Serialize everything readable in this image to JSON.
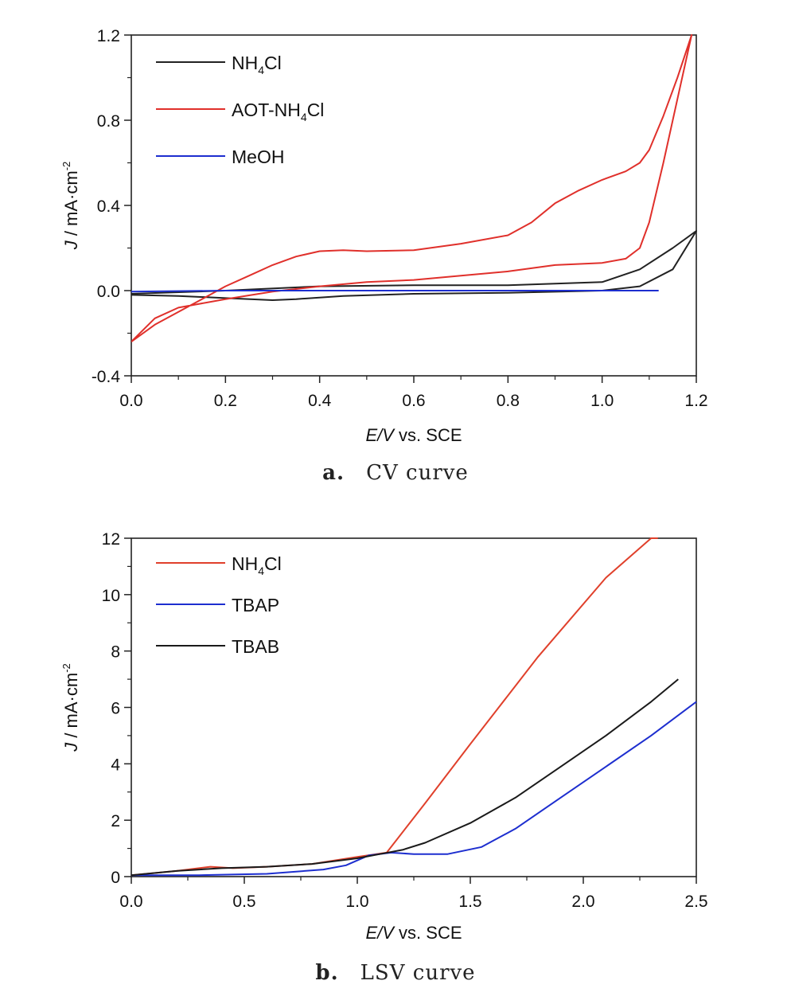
{
  "chart_data": [
    {
      "type": "line",
      "panel_letter": "a.",
      "caption": "CV curve",
      "xlabel_italic": "E/V",
      "xlabel_rest": " vs. SCE",
      "ylabel_italic": "J",
      "ylabel_rest": " / mA·cm",
      "ylabel_sup": "-2",
      "xlim": [
        0.0,
        1.2
      ],
      "ylim": [
        -0.4,
        1.2
      ],
      "xticks": [
        "0.0",
        "0.2",
        "0.4",
        "0.6",
        "0.8",
        "1.0",
        "1.2"
      ],
      "yticks": [
        "-0.4",
        "0.0",
        "0.4",
        "0.8",
        "1.2"
      ],
      "legend_position": "top-left",
      "series": [
        {
          "name_main": "NH",
          "name_sub": "4",
          "name_tail": "Cl",
          "color": "#222222",
          "x": [
            0.0,
            0.1,
            0.2,
            0.3,
            0.35,
            0.45,
            0.6,
            0.8,
            1.0,
            1.08,
            1.15,
            1.2,
            1.15,
            1.08,
            1.0,
            0.8,
            0.6,
            0.4,
            0.2,
            0.0
          ],
          "y": [
            -0.02,
            -0.025,
            -0.035,
            -0.045,
            -0.04,
            -0.025,
            -0.015,
            -0.01,
            0.0,
            0.02,
            0.1,
            0.28,
            0.2,
            0.1,
            0.04,
            0.025,
            0.025,
            0.02,
            0.0,
            -0.015
          ]
        },
        {
          "name_main": "AOT-NH",
          "name_sub": "4",
          "name_tail": "Cl",
          "color": "#e0302b",
          "x": [
            0.0,
            0.05,
            0.1,
            0.15,
            0.2,
            0.25,
            0.3,
            0.35,
            0.4,
            0.45,
            0.5,
            0.6,
            0.7,
            0.8,
            0.85,
            0.9,
            0.95,
            1.0,
            1.05,
            1.08,
            1.1,
            1.13,
            1.16,
            1.19,
            1.19,
            1.16,
            1.13,
            1.1,
            1.08,
            1.05,
            1.0,
            0.9,
            0.8,
            0.7,
            0.6,
            0.5,
            0.4,
            0.3,
            0.2,
            0.1,
            0.05,
            0.0
          ],
          "y": [
            -0.24,
            -0.16,
            -0.1,
            -0.04,
            0.02,
            0.07,
            0.12,
            0.16,
            0.185,
            0.19,
            0.185,
            0.19,
            0.22,
            0.26,
            0.32,
            0.41,
            0.47,
            0.52,
            0.56,
            0.6,
            0.66,
            0.82,
            1.0,
            1.2,
            1.2,
            0.9,
            0.6,
            0.32,
            0.2,
            0.15,
            0.13,
            0.12,
            0.09,
            0.07,
            0.05,
            0.04,
            0.02,
            -0.005,
            -0.04,
            -0.08,
            -0.13,
            -0.24
          ]
        },
        {
          "name_main": "MeOH",
          "name_sub": "",
          "name_tail": "",
          "color": "#1d2ecf",
          "x": [
            0.0,
            0.2,
            0.4,
            0.6,
            0.8,
            1.0,
            1.12
          ],
          "y": [
            -0.005,
            0.0,
            0.0,
            0.0,
            0.0,
            0.0,
            0.0
          ]
        }
      ]
    },
    {
      "type": "line",
      "panel_letter": "b.",
      "caption": "LSV curve",
      "xlabel_italic": "E/V",
      "xlabel_rest": " vs. SCE",
      "ylabel_italic": "J",
      "ylabel_rest": " / mA·cm",
      "ylabel_sup": "-2",
      "xlim": [
        0.0,
        2.5
      ],
      "ylim": [
        0,
        12
      ],
      "xticks": [
        "0.0",
        "0.5",
        "1.0",
        "1.5",
        "2.0",
        "2.5"
      ],
      "yticks": [
        "0",
        "2",
        "4",
        "6",
        "8",
        "10",
        "12"
      ],
      "legend_position": "top-left",
      "series": [
        {
          "name_main": "NH",
          "name_sub": "4",
          "name_tail": "Cl",
          "color": "#e0402b",
          "x": [
            0.0,
            0.2,
            0.35,
            0.45,
            0.6,
            0.8,
            1.0,
            1.13,
            1.3,
            1.5,
            1.8,
            2.1,
            2.3,
            2.33
          ],
          "y": [
            0.05,
            0.2,
            0.35,
            0.3,
            0.35,
            0.45,
            0.7,
            0.85,
            2.6,
            4.7,
            7.8,
            10.6,
            12.0,
            12.0
          ]
        },
        {
          "name_main": "TBAP",
          "name_sub": "",
          "name_tail": "",
          "color": "#1d2ecf",
          "x": [
            0.0,
            0.3,
            0.6,
            0.85,
            0.95,
            1.05,
            1.15,
            1.25,
            1.4,
            1.55,
            1.7,
            1.9,
            2.1,
            2.3,
            2.5
          ],
          "y": [
            0.05,
            0.05,
            0.1,
            0.25,
            0.4,
            0.75,
            0.85,
            0.8,
            0.8,
            1.05,
            1.7,
            2.8,
            3.9,
            5.0,
            6.2
          ]
        },
        {
          "name_main": "TBAB",
          "name_sub": "",
          "name_tail": "",
          "color": "#1a1a1a",
          "x": [
            0.0,
            0.2,
            0.4,
            0.6,
            0.8,
            1.0,
            1.1,
            1.2,
            1.3,
            1.5,
            1.7,
            1.9,
            2.1,
            2.3,
            2.42
          ],
          "y": [
            0.05,
            0.2,
            0.3,
            0.35,
            0.45,
            0.65,
            0.8,
            0.95,
            1.2,
            1.9,
            2.8,
            3.9,
            5.0,
            6.2,
            7.0
          ]
        }
      ]
    }
  ]
}
